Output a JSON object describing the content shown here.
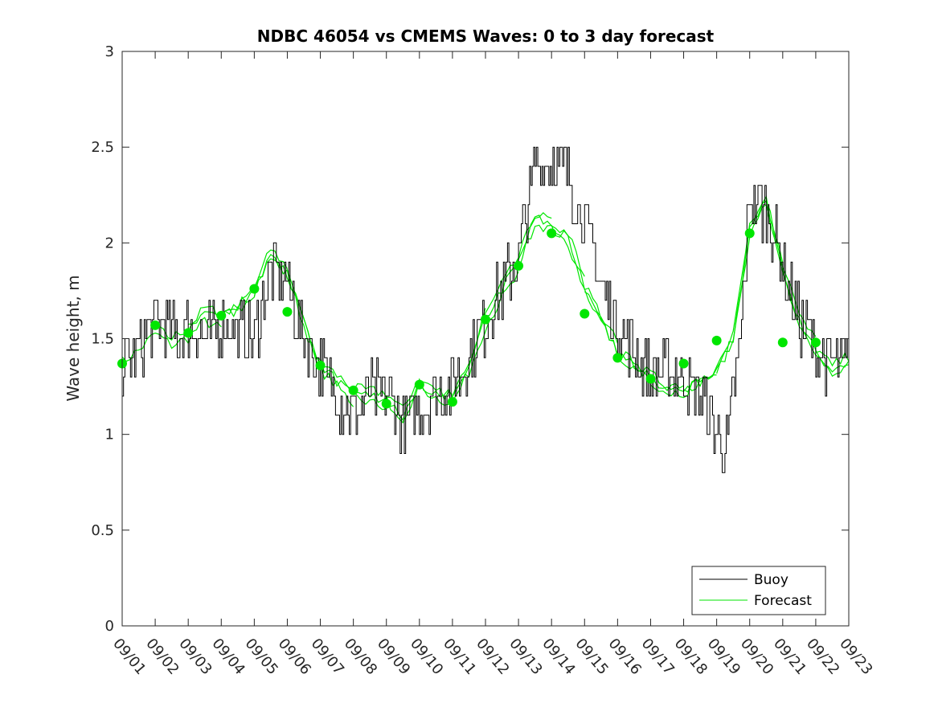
{
  "chart_data": {
    "type": "line",
    "title": "NDBC 46054 vs CMEMS Waves: 0 to 3 day forecast",
    "xlabel": "",
    "ylabel": "Wave height, m",
    "ylim": [
      0,
      3
    ],
    "xlim_days": [
      0,
      22
    ],
    "y_ticks": [
      0,
      0.5,
      1,
      1.5,
      2,
      2.5,
      3
    ],
    "y_tick_labels": [
      "0",
      "0.5",
      "1",
      "1.5",
      "2",
      "2.5",
      "3"
    ],
    "x_tick_labels": [
      "09/01",
      "09/02",
      "09/03",
      "09/04",
      "09/05",
      "09/06",
      "09/07",
      "09/08",
      "09/09",
      "09/10",
      "09/11",
      "09/12",
      "09/13",
      "09/14",
      "09/15",
      "09/16",
      "09/17",
      "09/18",
      "09/19",
      "09/20",
      "09/21",
      "09/22",
      "09/23"
    ],
    "legend": {
      "location": "bottom-right",
      "entries": [
        {
          "label": "Buoy",
          "color": "#000000"
        },
        {
          "label": "Forecast",
          "color": "#00e600"
        }
      ]
    },
    "colors": {
      "buoy": "#000000",
      "forecast": "#00e600"
    },
    "series": [
      {
        "name": "Buoy",
        "x": [
          0,
          0.5,
          1,
          1.3,
          1.5,
          2,
          2.5,
          3,
          3.5,
          4,
          4.5,
          5,
          5.5,
          6,
          6.5,
          7,
          7.5,
          8,
          8.5,
          9,
          9.5,
          10,
          10.5,
          11,
          11.5,
          12,
          12.5,
          13,
          13.5,
          14,
          14.5,
          15,
          15.5,
          16,
          16.5,
          17,
          17.5,
          18,
          18.3,
          18.7,
          19,
          19.5,
          20,
          20.5,
          21,
          21.5,
          22
        ],
        "values": [
          1.37,
          1.45,
          1.6,
          1.6,
          1.52,
          1.55,
          1.5,
          1.6,
          1.55,
          1.5,
          1.85,
          1.8,
          1.5,
          1.35,
          1.2,
          1.1,
          1.2,
          1.22,
          1.05,
          1.15,
          1.2,
          1.25,
          1.4,
          1.6,
          1.75,
          1.95,
          2.4,
          2.45,
          2.35,
          2.1,
          1.8,
          1.55,
          1.45,
          1.3,
          1.35,
          1.3,
          1.2,
          0.98,
          0.95,
          1.45,
          2.25,
          2.15,
          1.9,
          1.6,
          1.45,
          1.35,
          1.38
        ]
      },
      {
        "name": "Forecast",
        "x": [
          0,
          0.5,
          1,
          1.5,
          2,
          2.5,
          3,
          3.5,
          4,
          4.5,
          5,
          5.5,
          6,
          6.5,
          7,
          7.5,
          8,
          8.5,
          9,
          9.5,
          10,
          10.5,
          11,
          11.5,
          12,
          12.5,
          13,
          13.5,
          14,
          14.5,
          15,
          15.5,
          16,
          16.5,
          17,
          17.5,
          18,
          18.5,
          19,
          19.5,
          20,
          20.5,
          21,
          21.5,
          22
        ],
        "values": [
          1.38,
          1.45,
          1.55,
          1.5,
          1.55,
          1.65,
          1.62,
          1.65,
          1.75,
          1.95,
          1.85,
          1.6,
          1.38,
          1.3,
          1.22,
          1.2,
          1.18,
          1.08,
          1.25,
          1.2,
          1.18,
          1.35,
          1.6,
          1.75,
          1.88,
          2.1,
          2.05,
          2.0,
          1.75,
          1.58,
          1.42,
          1.35,
          1.28,
          1.22,
          1.22,
          1.28,
          1.32,
          1.5,
          2.05,
          2.2,
          1.85,
          1.6,
          1.45,
          1.35,
          1.4
        ]
      }
    ],
    "forecast_markers": {
      "x": [
        0,
        1,
        2,
        3,
        4,
        5,
        6,
        7,
        8,
        9,
        10,
        11,
        12,
        13,
        14,
        15,
        16,
        17,
        18,
        19,
        20,
        21
      ],
      "values": [
        1.37,
        1.57,
        1.53,
        1.62,
        1.76,
        1.64,
        1.36,
        1.23,
        1.16,
        1.26,
        1.17,
        1.6,
        1.88,
        2.05,
        1.63,
        1.4,
        1.29,
        1.37,
        1.49,
        2.05,
        1.48,
        1.48
      ]
    }
  }
}
